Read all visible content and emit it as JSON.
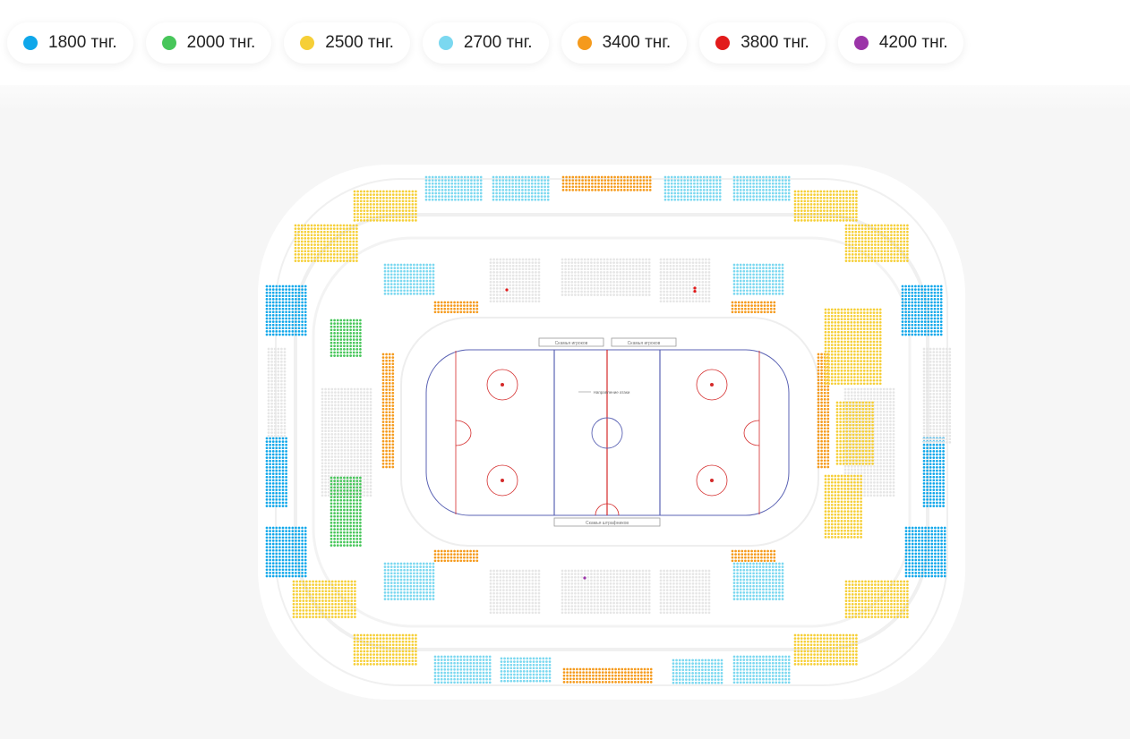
{
  "price_legend": [
    {
      "label": "1800 тнг.",
      "color": "#0fa7ea"
    },
    {
      "label": "2000 тнг.",
      "color": "#47c65a"
    },
    {
      "label": "2500 тнг.",
      "color": "#f6cf37"
    },
    {
      "label": "2700 тнг.",
      "color": "#7bd8f0"
    },
    {
      "label": "3400 тнг.",
      "color": "#f59a1c"
    },
    {
      "label": "3800 тнг.",
      "color": "#e21b1b"
    },
    {
      "label": "4200 тнг.",
      "color": "#9b34a8"
    }
  ],
  "rink_labels": {
    "bench_a": "Скамья игроков",
    "bench_b": "Скамья игроков",
    "penalty_box": "Скамья штрафников",
    "attack_direction": "Направление атаки"
  },
  "colors": {
    "unavailable_seat": "#e6e6e6",
    "rink_line_red": "#d42a2a",
    "rink_line_blue": "#5b63b4",
    "arena_ring": "#f2f2f2"
  }
}
